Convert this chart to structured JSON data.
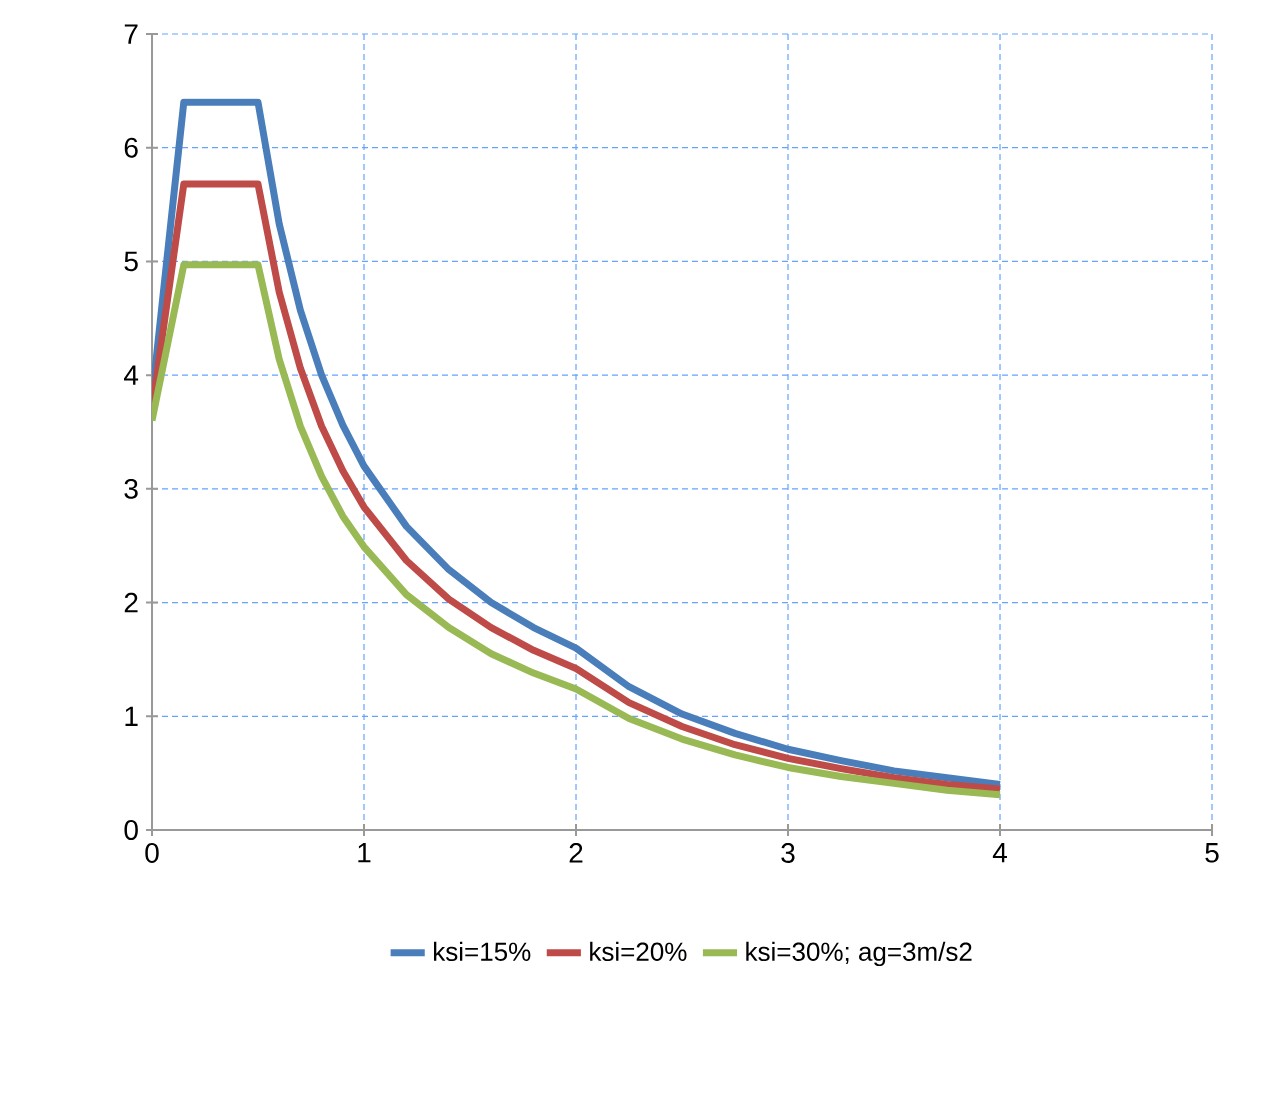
{
  "chart_data": {
    "type": "line",
    "xlim": [
      0,
      5
    ],
    "ylim": [
      0,
      7
    ],
    "xticks": [
      0,
      1,
      2,
      3,
      4,
      5
    ],
    "yticks": [
      0,
      1,
      2,
      3,
      4,
      5,
      6,
      7
    ],
    "grid": true,
    "legend": "bottom",
    "line_style": "solid",
    "marker": "none",
    "x": [
      0,
      0.15,
      0.5,
      0.6,
      0.7,
      0.8,
      0.9,
      1.0,
      1.2,
      1.4,
      1.6,
      1.8,
      2.0,
      2.25,
      2.5,
      2.75,
      3.0,
      3.25,
      3.5,
      3.75,
      4.0
    ],
    "series": [
      {
        "name": "ksi=15%",
        "color": "#4a7ebb",
        "values": [
          3.8,
          6.4,
          6.4,
          5.33,
          4.57,
          4.0,
          3.56,
          3.2,
          2.67,
          2.29,
          2.0,
          1.78,
          1.6,
          1.26,
          1.02,
          0.85,
          0.71,
          0.61,
          0.52,
          0.46,
          0.4
        ]
      },
      {
        "name": "ksi=20%",
        "color": "#be4b48",
        "values": [
          3.7,
          5.68,
          5.68,
          4.73,
          4.06,
          3.55,
          3.16,
          2.84,
          2.37,
          2.03,
          1.78,
          1.58,
          1.42,
          1.12,
          0.91,
          0.75,
          0.63,
          0.54,
          0.46,
          0.4,
          0.36
        ]
      },
      {
        "name": "ksi=30%; ag=3m/s2",
        "color": "#98b954",
        "values": [
          3.6,
          4.97,
          4.97,
          4.14,
          3.55,
          3.11,
          2.76,
          2.49,
          2.07,
          1.78,
          1.55,
          1.38,
          1.24,
          0.98,
          0.8,
          0.66,
          0.55,
          0.47,
          0.41,
          0.35,
          0.31
        ]
      }
    ]
  }
}
